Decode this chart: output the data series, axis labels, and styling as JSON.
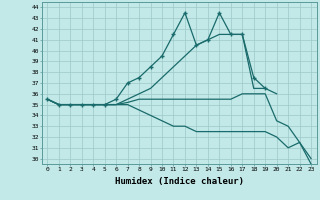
{
  "xlabel": "Humidex (Indice chaleur)",
  "ylabel": "",
  "xlim": [
    -0.5,
    23.5
  ],
  "ylim": [
    29.5,
    44.5
  ],
  "xticks": [
    0,
    1,
    2,
    3,
    4,
    5,
    6,
    7,
    8,
    9,
    10,
    11,
    12,
    13,
    14,
    15,
    16,
    17,
    18,
    19,
    20,
    21,
    22,
    23
  ],
  "yticks": [
    30,
    31,
    32,
    33,
    34,
    35,
    36,
    37,
    38,
    39,
    40,
    41,
    42,
    43,
    44
  ],
  "line_color": "#1a6b6b",
  "bg_color": "#c2e8e8",
  "grid_color": "#9ec8c8",
  "lines": [
    {
      "x": [
        0,
        1,
        2,
        3,
        4,
        5,
        6,
        7,
        8,
        9,
        10,
        11,
        12,
        13,
        14,
        15,
        16,
        17,
        18,
        19
      ],
      "y": [
        35.5,
        35.0,
        35.0,
        35.0,
        35.0,
        35.0,
        35.5,
        37.0,
        37.5,
        38.5,
        39.5,
        41.5,
        43.5,
        40.5,
        41.0,
        43.5,
        41.5,
        41.5,
        37.5,
        36.5
      ],
      "marker": true
    },
    {
      "x": [
        0,
        1,
        2,
        3,
        4,
        5,
        6,
        7,
        8,
        9,
        10,
        11,
        12,
        13,
        14,
        15,
        16,
        17,
        18,
        19,
        20
      ],
      "y": [
        35.5,
        35.0,
        35.0,
        35.0,
        35.0,
        35.0,
        35.0,
        35.5,
        36.0,
        36.5,
        37.5,
        38.5,
        39.5,
        40.5,
        41.0,
        41.5,
        41.5,
        41.5,
        36.5,
        36.5,
        36.0
      ],
      "marker": false
    },
    {
      "x": [
        0,
        1,
        2,
        3,
        4,
        5,
        6,
        7,
        8,
        9,
        10,
        11,
        12,
        13,
        14,
        15,
        16,
        17,
        18,
        19,
        20,
        21,
        22,
        23
      ],
      "y": [
        35.5,
        35.0,
        35.0,
        35.0,
        35.0,
        35.0,
        35.0,
        35.2,
        35.5,
        35.5,
        35.5,
        35.5,
        35.5,
        35.5,
        35.5,
        35.5,
        35.5,
        36.0,
        36.0,
        36.0,
        33.5,
        33.0,
        31.5,
        30.0
      ],
      "marker": false
    },
    {
      "x": [
        0,
        1,
        2,
        3,
        4,
        5,
        6,
        7,
        8,
        9,
        10,
        11,
        12,
        13,
        14,
        15,
        16,
        17,
        18,
        19,
        20,
        21,
        22,
        23
      ],
      "y": [
        35.5,
        35.0,
        35.0,
        35.0,
        35.0,
        35.0,
        35.0,
        35.0,
        34.5,
        34.0,
        33.5,
        33.0,
        33.0,
        32.5,
        32.5,
        32.5,
        32.5,
        32.5,
        32.5,
        32.5,
        32.0,
        31.0,
        31.5,
        29.5
      ],
      "marker": false
    }
  ]
}
